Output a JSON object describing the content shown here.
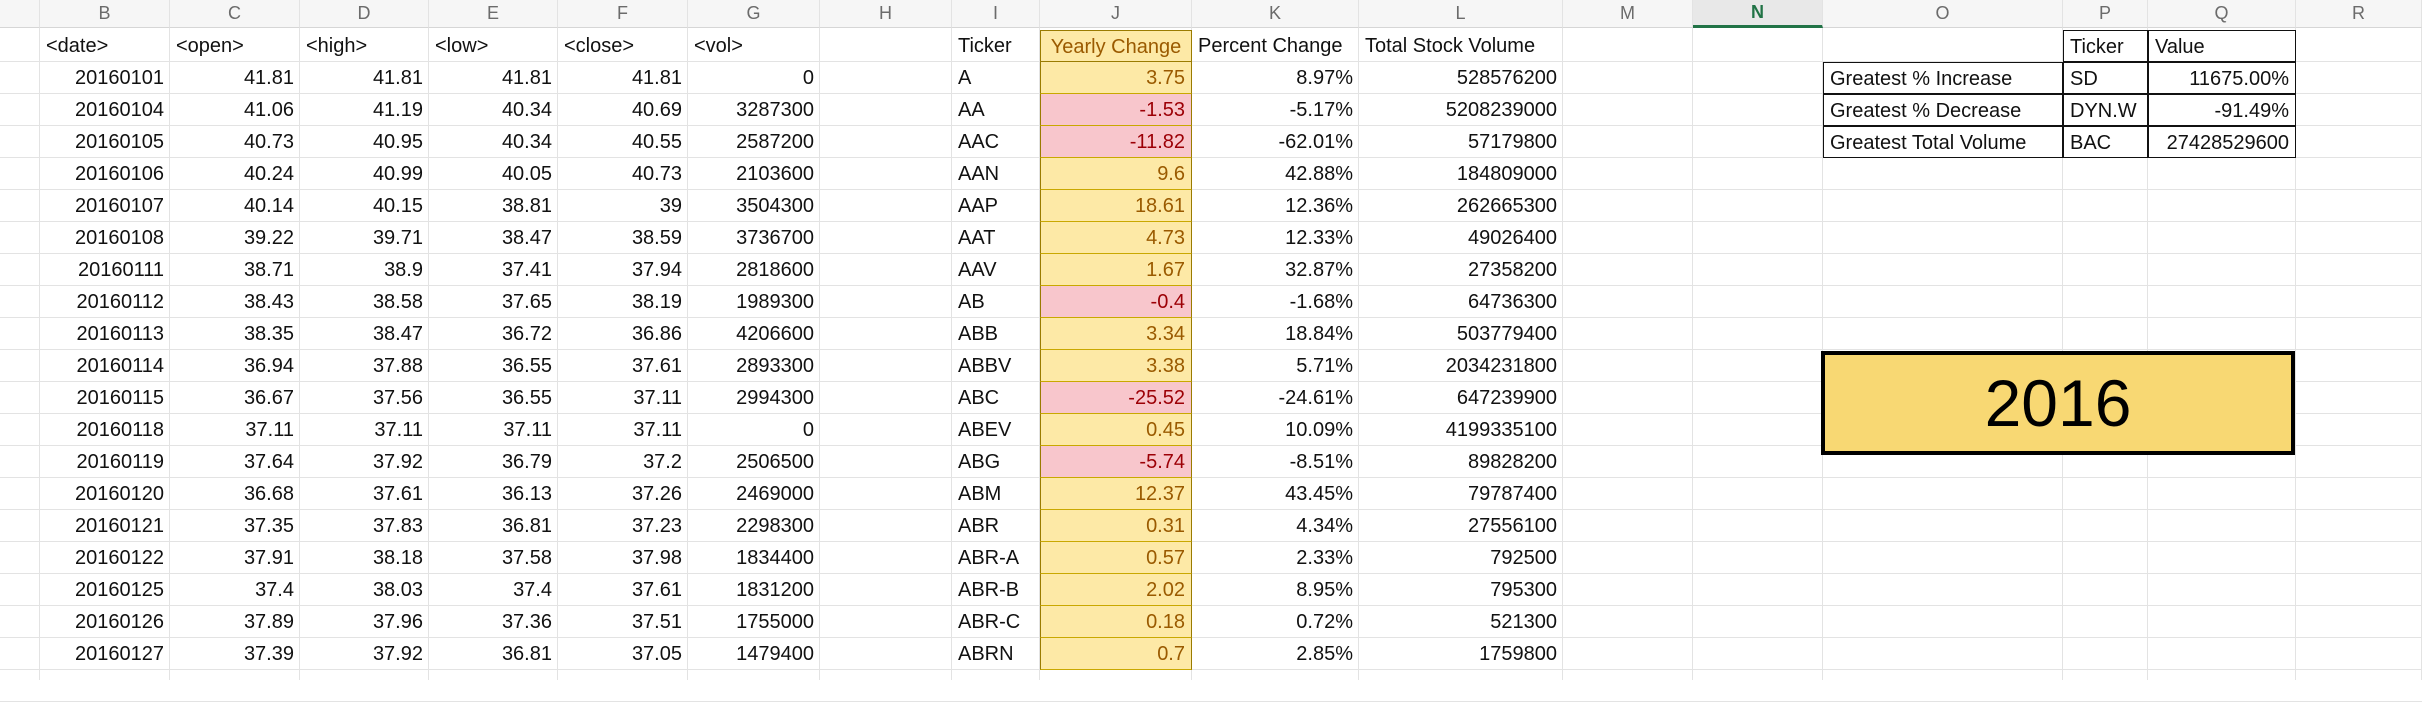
{
  "column_headers": [
    "B",
    "C",
    "D",
    "E",
    "F",
    "G",
    "H",
    "I",
    "J",
    "K",
    "L",
    "M",
    "N",
    "O",
    "P",
    "Q",
    "R"
  ],
  "selected_column": "N",
  "stock_headers": [
    "<date>",
    "<open>",
    "<high>",
    "<low>",
    "<close>",
    "<vol>"
  ],
  "stock_rows": [
    [
      "20160101",
      "41.81",
      "41.81",
      "41.81",
      "41.81",
      "0"
    ],
    [
      "20160104",
      "41.06",
      "41.19",
      "40.34",
      "40.69",
      "3287300"
    ],
    [
      "20160105",
      "40.73",
      "40.95",
      "40.34",
      "40.55",
      "2587200"
    ],
    [
      "20160106",
      "40.24",
      "40.99",
      "40.05",
      "40.73",
      "2103600"
    ],
    [
      "20160107",
      "40.14",
      "40.15",
      "38.81",
      "39",
      "3504300"
    ],
    [
      "20160108",
      "39.22",
      "39.71",
      "38.47",
      "38.59",
      "3736700"
    ],
    [
      "20160111",
      "38.71",
      "38.9",
      "37.41",
      "37.94",
      "2818600"
    ],
    [
      "20160112",
      "38.43",
      "38.58",
      "37.65",
      "38.19",
      "1989300"
    ],
    [
      "20160113",
      "38.35",
      "38.47",
      "36.72",
      "36.86",
      "4206600"
    ],
    [
      "20160114",
      "36.94",
      "37.88",
      "36.55",
      "37.61",
      "2893300"
    ],
    [
      "20160115",
      "36.67",
      "37.56",
      "36.55",
      "37.11",
      "2994300"
    ],
    [
      "20160118",
      "37.11",
      "37.11",
      "37.11",
      "37.11",
      "0"
    ],
    [
      "20160119",
      "37.64",
      "37.92",
      "36.79",
      "37.2",
      "2506500"
    ],
    [
      "20160120",
      "36.68",
      "37.61",
      "36.13",
      "37.26",
      "2469000"
    ],
    [
      "20160121",
      "37.35",
      "37.83",
      "36.81",
      "37.23",
      "2298300"
    ],
    [
      "20160122",
      "37.91",
      "38.18",
      "37.58",
      "37.98",
      "1834400"
    ],
    [
      "20160125",
      "37.4",
      "38.03",
      "37.4",
      "37.61",
      "1831200"
    ],
    [
      "20160126",
      "37.89",
      "37.96",
      "37.36",
      "37.51",
      "1755000"
    ],
    [
      "20160127",
      "37.39",
      "37.92",
      "36.81",
      "37.05",
      "1479400"
    ]
  ],
  "summary_headers": [
    "Ticker",
    "Yearly Change",
    "Percent Change",
    "Total Stock Volume"
  ],
  "summary_rows": [
    {
      "ticker": "A",
      "change": "3.75",
      "pct": "8.97%",
      "vol": "528576200",
      "neg": false
    },
    {
      "ticker": "AA",
      "change": "-1.53",
      "pct": "-5.17%",
      "vol": "5208239000",
      "neg": true
    },
    {
      "ticker": "AAC",
      "change": "-11.82",
      "pct": "-62.01%",
      "vol": "57179800",
      "neg": true
    },
    {
      "ticker": "AAN",
      "change": "9.6",
      "pct": "42.88%",
      "vol": "184809000",
      "neg": false
    },
    {
      "ticker": "AAP",
      "change": "18.61",
      "pct": "12.36%",
      "vol": "262665300",
      "neg": false
    },
    {
      "ticker": "AAT",
      "change": "4.73",
      "pct": "12.33%",
      "vol": "49026400",
      "neg": false
    },
    {
      "ticker": "AAV",
      "change": "1.67",
      "pct": "32.87%",
      "vol": "27358200",
      "neg": false
    },
    {
      "ticker": "AB",
      "change": "-0.4",
      "pct": "-1.68%",
      "vol": "64736300",
      "neg": true
    },
    {
      "ticker": "ABB",
      "change": "3.34",
      "pct": "18.84%",
      "vol": "503779400",
      "neg": false
    },
    {
      "ticker": "ABBV",
      "change": "3.38",
      "pct": "5.71%",
      "vol": "2034231800",
      "neg": false
    },
    {
      "ticker": "ABC",
      "change": "-25.52",
      "pct": "-24.61%",
      "vol": "647239900",
      "neg": true
    },
    {
      "ticker": "ABEV",
      "change": "0.45",
      "pct": "10.09%",
      "vol": "4199335100",
      "neg": false
    },
    {
      "ticker": "ABG",
      "change": "-5.74",
      "pct": "-8.51%",
      "vol": "89828200",
      "neg": true
    },
    {
      "ticker": "ABM",
      "change": "12.37",
      "pct": "43.45%",
      "vol": "79787400",
      "neg": false
    },
    {
      "ticker": "ABR",
      "change": "0.31",
      "pct": "4.34%",
      "vol": "27556100",
      "neg": false
    },
    {
      "ticker": "ABR-A",
      "change": "0.57",
      "pct": "2.33%",
      "vol": "792500",
      "neg": false
    },
    {
      "ticker": "ABR-B",
      "change": "2.02",
      "pct": "8.95%",
      "vol": "795300",
      "neg": false
    },
    {
      "ticker": "ABR-C",
      "change": "0.18",
      "pct": "0.72%",
      "vol": "521300",
      "neg": false
    },
    {
      "ticker": "ABRN",
      "change": "0.7",
      "pct": "2.85%",
      "vol": "1759800",
      "neg": false
    }
  ],
  "greatest": {
    "header_ticker": "Ticker",
    "header_value": "Value",
    "rows": [
      {
        "label": "Greatest % Increase",
        "ticker": "SD",
        "value": "11675.00%"
      },
      {
        "label": "Greatest % Decrease",
        "ticker": "DYN.W",
        "value": "-91.49%"
      },
      {
        "label": "Greatest Total Volume",
        "ticker": "BAC",
        "value": "27428529600"
      }
    ]
  },
  "year_banner": "2016",
  "colors": {
    "positive_fill": "#fde9a6",
    "negative_fill": "#f8c6cc",
    "banner_fill": "#f8d873",
    "selected_header": "#217346"
  }
}
